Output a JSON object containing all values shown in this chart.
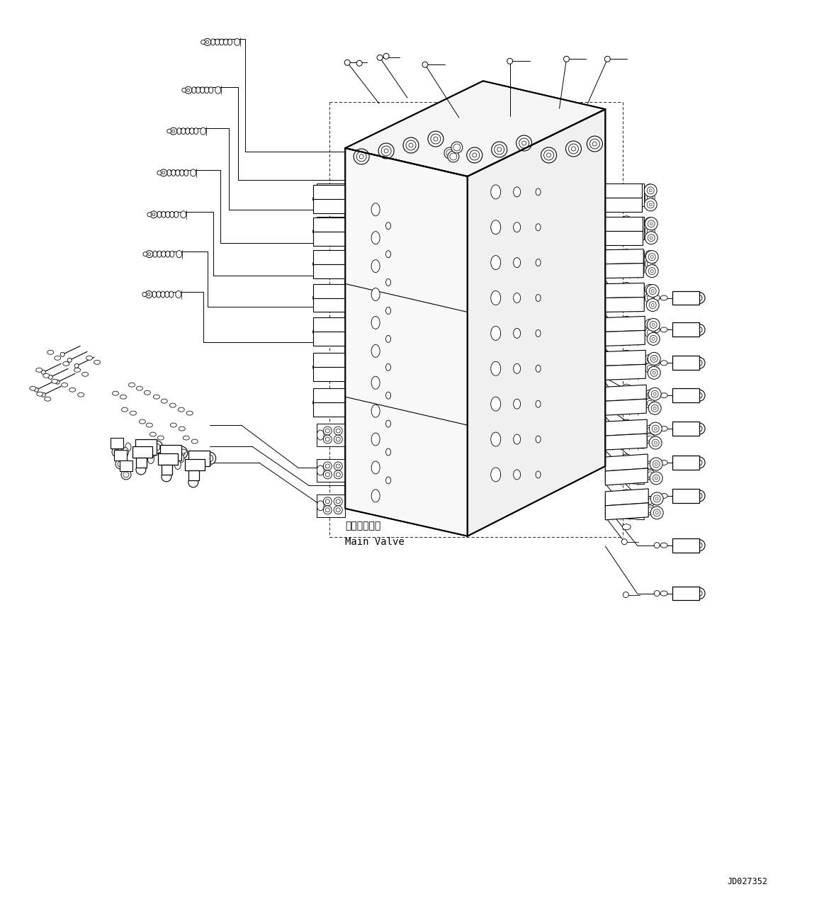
{
  "bg_color": "#ffffff",
  "line_color": "#000000",
  "fig_width": 11.63,
  "fig_height": 12.76,
  "dpi": 100,
  "label_jd": "JD027352",
  "label_main_valve_jp": "メインバルブ",
  "label_main_valve_en": "Main Valve"
}
